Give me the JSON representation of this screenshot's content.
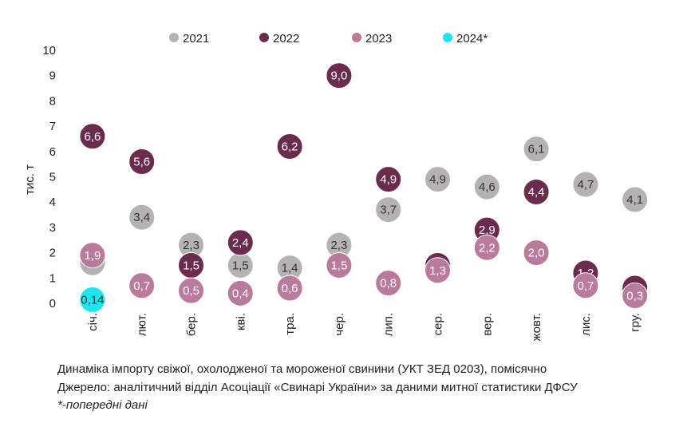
{
  "chart_data": {
    "type": "scatter",
    "ylabel": "тис. т",
    "ylim": [
      0,
      10
    ],
    "yticks": [
      "0",
      "1",
      "2",
      "3",
      "4",
      "5",
      "6",
      "7",
      "8",
      "9",
      "10"
    ],
    "categories": [
      "січ.",
      "лют.",
      "бер.",
      "кві.",
      "тра.",
      "чер.",
      "лип.",
      "сер.",
      "вер.",
      "жовт.",
      "лис.",
      "гру."
    ],
    "legend_position": "top",
    "grid": false,
    "series": [
      {
        "name": "2021",
        "color": "#b4b2b2",
        "text_color": "#333333",
        "values": [
          1.6,
          3.4,
          2.3,
          1.5,
          1.4,
          2.3,
          3.7,
          4.9,
          4.6,
          6.1,
          4.7,
          4.1
        ],
        "labels": [
          "1,6",
          "3,4",
          "2,3",
          "1,5",
          "1,4",
          "2,3",
          "3,7",
          "4,9",
          "4,6",
          "6,1",
          "4,7",
          "4,1"
        ]
      },
      {
        "name": "2022",
        "color": "#6b2b4c",
        "text_color": "#ffffff",
        "values": [
          6.6,
          5.6,
          1.5,
          2.4,
          6.2,
          9.0,
          4.9,
          1.5,
          2.9,
          4.4,
          1.2,
          0.6
        ],
        "labels": [
          "6,6",
          "5,6",
          "1,5",
          "2,4",
          "6,2",
          "9,0",
          "4,9",
          "1,5",
          "2,9",
          "4,4",
          "1,2",
          "0,6"
        ]
      },
      {
        "name": "2023",
        "color": "#b97a9c",
        "text_color": "#ffffff",
        "values": [
          1.9,
          0.7,
          0.5,
          0.4,
          0.6,
          1.5,
          0.8,
          1.3,
          2.2,
          2.0,
          0.7,
          0.3
        ],
        "labels": [
          "1,9",
          "0,7",
          "0,5",
          "0,4",
          "0,6",
          "1,5",
          "0,8",
          "1,3",
          "2,2",
          "2,0",
          "0,7",
          "0,3"
        ]
      },
      {
        "name": "2024*",
        "color": "#1de6ee",
        "text_color": "#333333",
        "values": [
          0.14,
          null,
          null,
          null,
          null,
          null,
          null,
          null,
          null,
          null,
          null,
          null
        ],
        "labels": [
          "0,14",
          "",
          "",
          "",
          "",
          "",
          "",
          "",
          "",
          "",
          "",
          ""
        ]
      }
    ]
  },
  "caption": {
    "line1": "Динаміка імпорту свіжої, охолодженої та мороженої свинини (УКТ ЗЕД 0203), помісячно",
    "line2": "Джерело: аналітичний відділ Асоціації «Свинарі України» за даними митної статистики ДФСУ",
    "note": "*-попередні дані"
  }
}
